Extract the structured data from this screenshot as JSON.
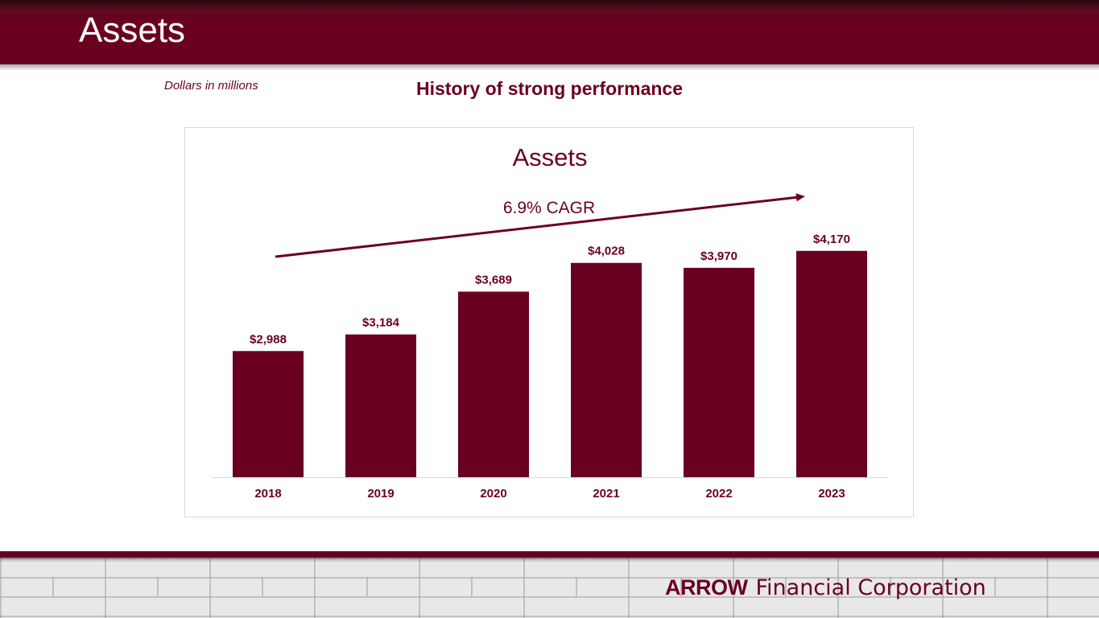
{
  "header": {
    "title": "Assets"
  },
  "note": "Dollars in millions",
  "heading": "History of strong performance",
  "footer": {
    "logo_mark": "ARROW",
    "logo_text": "Financial Corporation"
  },
  "colors": {
    "brand": "#6a0020",
    "bar": "#6a0020",
    "axis": "#d9d9d9"
  },
  "chart_data": {
    "type": "bar",
    "title": "Assets",
    "annotation": "6.9% CAGR",
    "categories": [
      "2018",
      "2019",
      "2020",
      "2021",
      "2022",
      "2023"
    ],
    "values": [
      2988,
      3184,
      3689,
      4028,
      3970,
      4170
    ],
    "data_labels": [
      "$2,988",
      "$3,184",
      "$3,689",
      "$4,028",
      "$3,970",
      "$4,170"
    ],
    "ylim": [
      1500,
      4500
    ],
    "xlabel": "",
    "ylabel": "",
    "grid": false,
    "legend": "none"
  }
}
